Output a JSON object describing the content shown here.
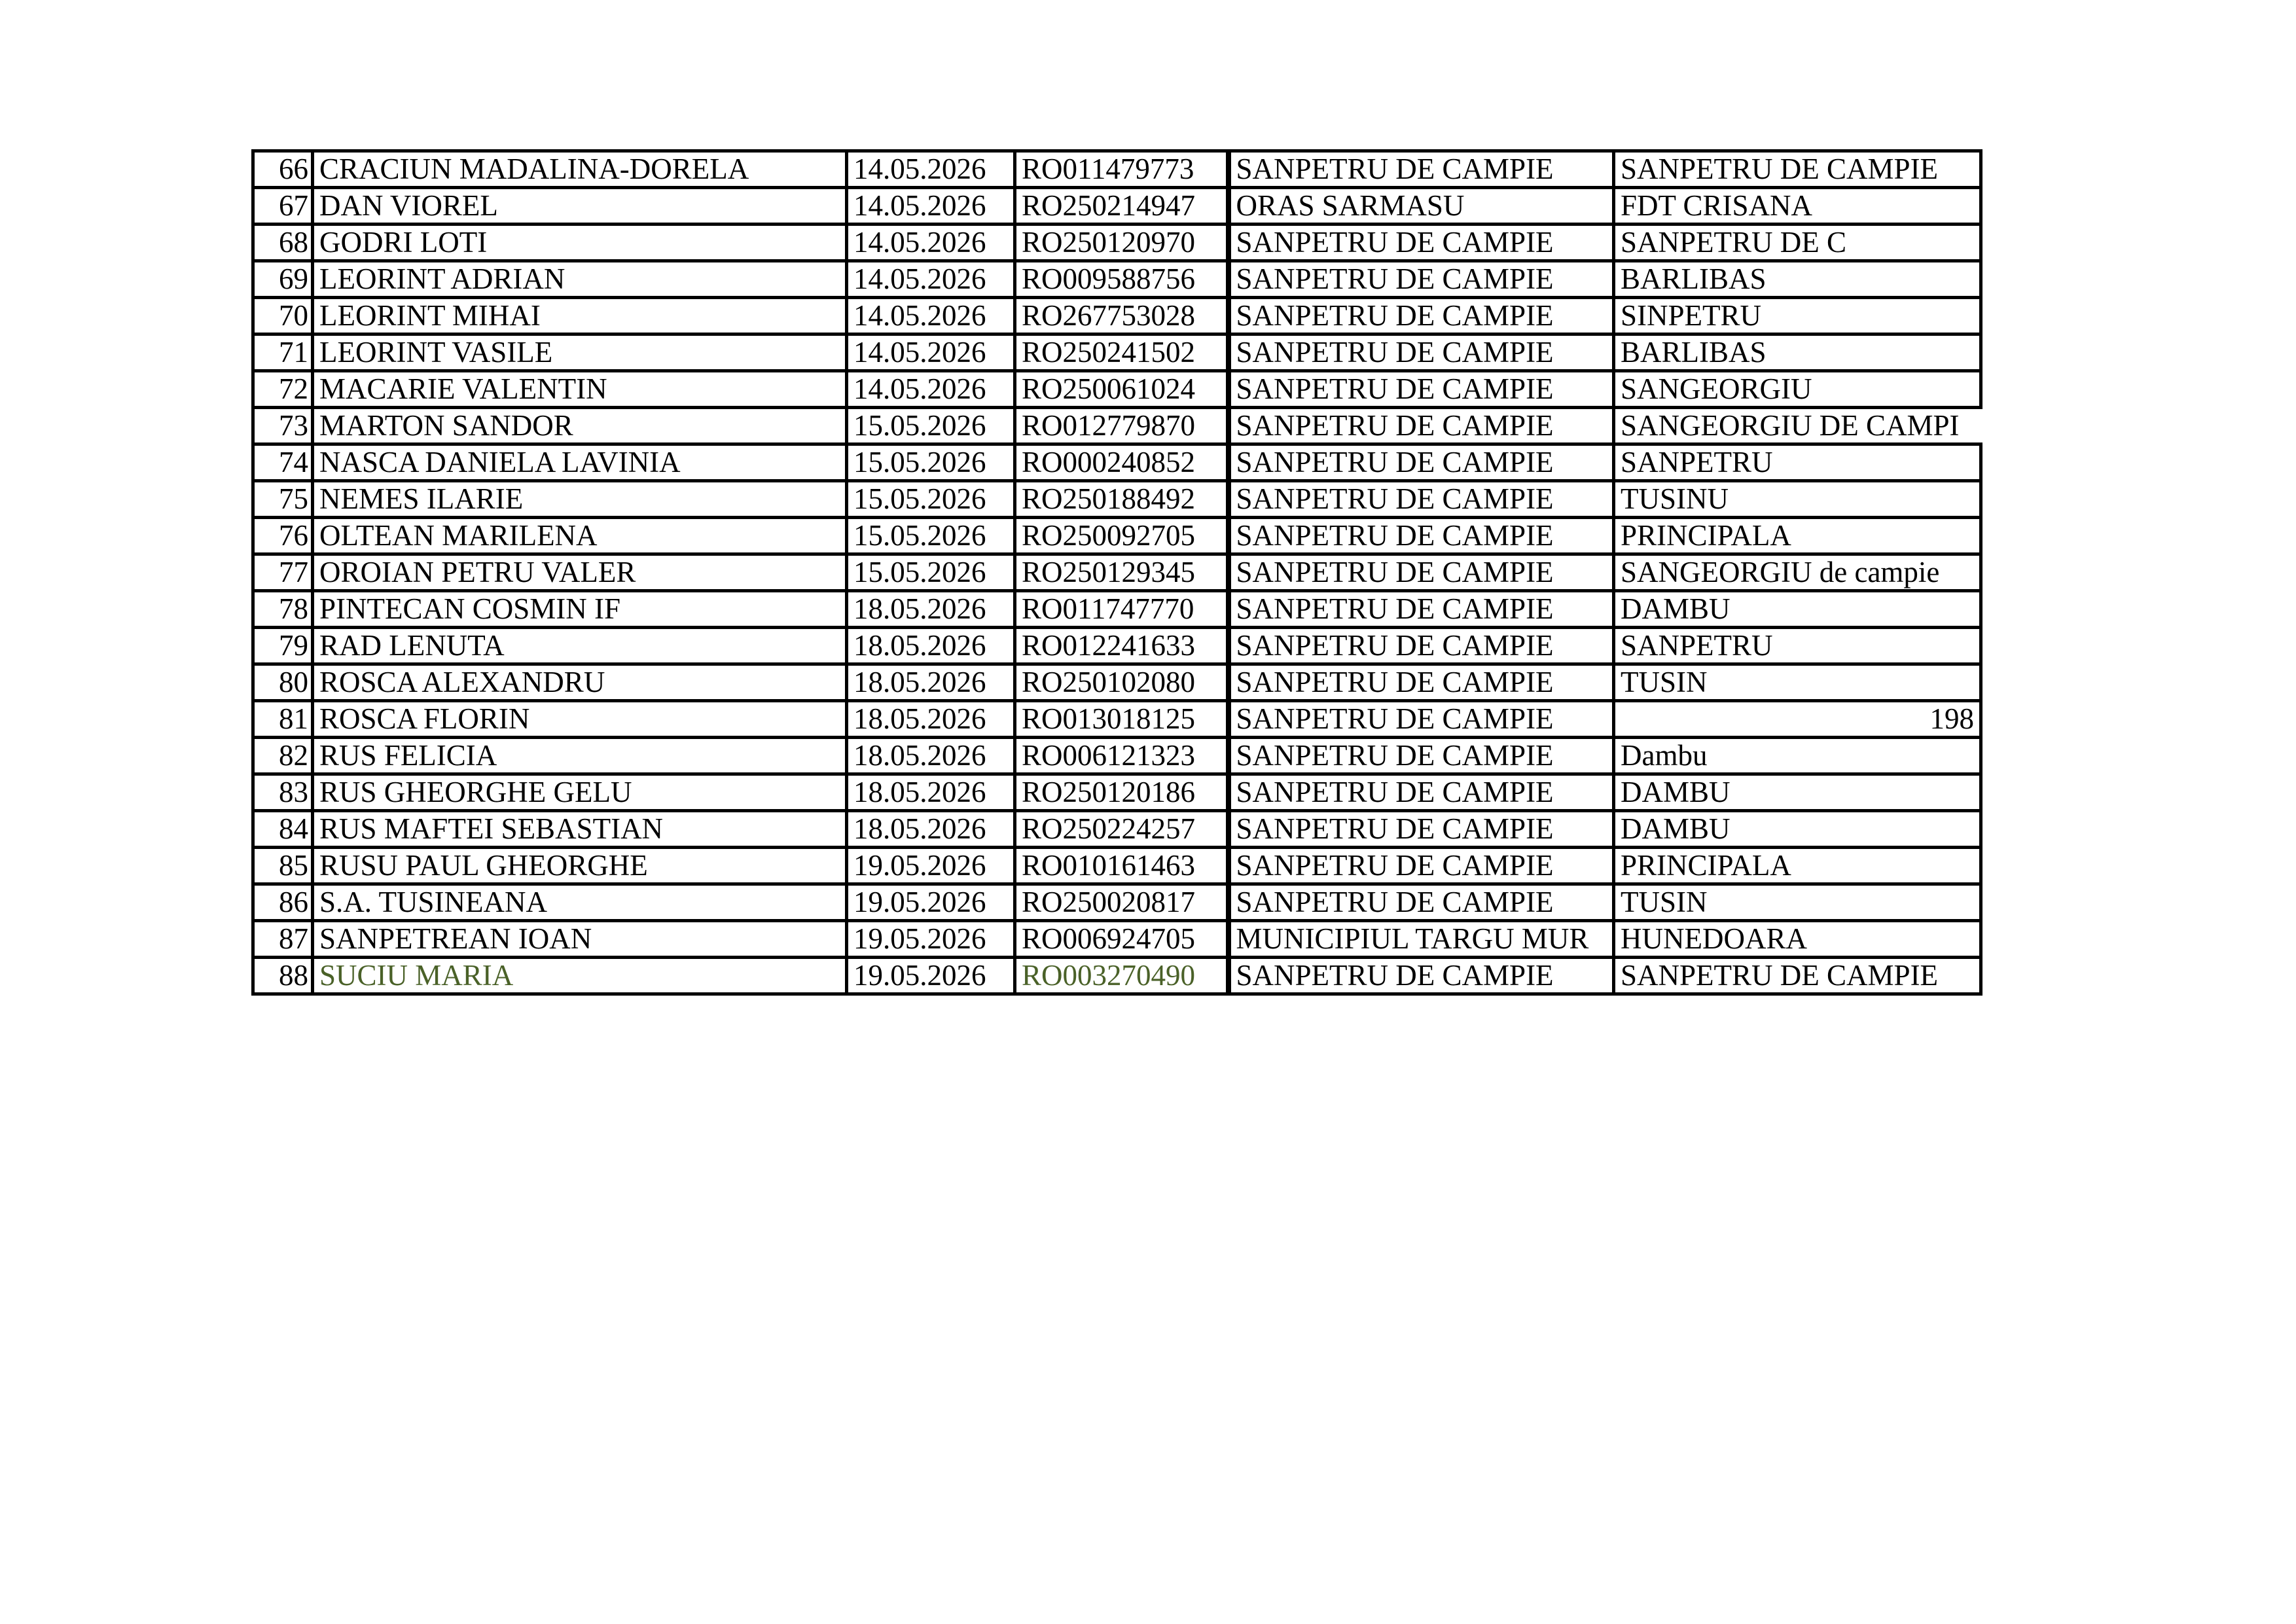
{
  "colors": {
    "highlight_text": "#4a6128"
  },
  "rows": [
    {
      "nr": "66",
      "name": "CRACIUN MADALINA-DORELA",
      "date": "14.05.2026",
      "code": "RO011479773",
      "locality": "SANPETRU DE CAMPIE",
      "street": "SANPETRU DE CAMPIE"
    },
    {
      "nr": "67",
      "name": "DAN VIOREL",
      "date": "14.05.2026",
      "code": "RO250214947",
      "locality": "ORAS SARMASU",
      "street": "FDT CRISANA"
    },
    {
      "nr": "68",
      "name": "GODRI LOTI",
      "date": "14.05.2026",
      "code": "RO250120970",
      "locality": "SANPETRU DE CAMPIE",
      "street": "SANPETRU DE C"
    },
    {
      "nr": "69",
      "name": "LEORINT ADRIAN",
      "date": "14.05.2026",
      "code": "RO009588756",
      "locality": "SANPETRU DE CAMPIE",
      "street": "BARLIBAS"
    },
    {
      "nr": "70",
      "name": "LEORINT MIHAI",
      "date": "14.05.2026",
      "code": "RO267753028",
      "locality": "SANPETRU DE CAMPIE",
      "street": "SINPETRU"
    },
    {
      "nr": "71",
      "name": "LEORINT VASILE",
      "date": "14.05.2026",
      "code": "RO250241502",
      "locality": "SANPETRU DE CAMPIE",
      "street": "BARLIBAS"
    },
    {
      "nr": "72",
      "name": "MACARIE VALENTIN",
      "date": "14.05.2026",
      "code": "RO250061024",
      "locality": "SANPETRU DE CAMPIE",
      "street": "SANGEORGIU"
    },
    {
      "nr": "73",
      "name": "MARTON SANDOR",
      "date": "15.05.2026",
      "code": "RO012779870",
      "locality": "SANPETRU DE CAMPIE",
      "street": "SANGEORGIU DE CAMPI"
    },
    {
      "nr": "74",
      "name": "NASCA DANIELA LAVINIA",
      "date": "15.05.2026",
      "code": "RO000240852",
      "locality": "SANPETRU DE CAMPIE",
      "street": "SANPETRU"
    },
    {
      "nr": "75",
      "name": "NEMES ILARIE",
      "date": "15.05.2026",
      "code": "RO250188492",
      "locality": "SANPETRU DE CAMPIE",
      "street": "TUSINU"
    },
    {
      "nr": "76",
      "name": "OLTEAN MARILENA",
      "date": "15.05.2026",
      "code": "RO250092705",
      "locality": "SANPETRU DE CAMPIE",
      "street": "PRINCIPALA"
    },
    {
      "nr": "77",
      "name": "OROIAN PETRU VALER",
      "date": "15.05.2026",
      "code": "RO250129345",
      "locality": "SANPETRU DE CAMPIE",
      "street": "SANGEORGIU de campie"
    },
    {
      "nr": "78",
      "name": "PINTECAN COSMIN IF",
      "date": "18.05.2026",
      "code": "RO011747770",
      "locality": "SANPETRU DE CAMPIE",
      "street": "DAMBU"
    },
    {
      "nr": "79",
      "name": "RAD LENUTA",
      "date": "18.05.2026",
      "code": "RO012241633",
      "locality": "SANPETRU DE CAMPIE",
      "street": "SANPETRU"
    },
    {
      "nr": "80",
      "name": "ROSCA ALEXANDRU",
      "date": "18.05.2026",
      "code": "RO250102080",
      "locality": "SANPETRU DE CAMPIE",
      "street": "TUSIN"
    },
    {
      "nr": "81",
      "name": "ROSCA FLORIN",
      "date": "18.05.2026",
      "code": "RO013018125",
      "locality": "SANPETRU DE CAMPIE",
      "street": "198"
    },
    {
      "nr": "82",
      "name": "RUS FELICIA",
      "date": "18.05.2026",
      "code": "RO006121323",
      "locality": "SANPETRU DE CAMPIE",
      "street": "Dambu"
    },
    {
      "nr": "83",
      "name": "RUS GHEORGHE GELU",
      "date": "18.05.2026",
      "code": "RO250120186",
      "locality": "SANPETRU DE CAMPIE",
      "street": "DAMBU"
    },
    {
      "nr": "84",
      "name": "RUS MAFTEI SEBASTIAN",
      "date": "18.05.2026",
      "code": "RO250224257",
      "locality": "SANPETRU DE CAMPIE",
      "street": "DAMBU"
    },
    {
      "nr": "85",
      "name": "RUSU PAUL GHEORGHE",
      "date": "19.05.2026",
      "code": "RO010161463",
      "locality": "SANPETRU DE CAMPIE",
      "street": "PRINCIPALA"
    },
    {
      "nr": "86",
      "name": "S.A. TUSINEANA",
      "date": "19.05.2026",
      "code": "RO250020817",
      "locality": "SANPETRU DE CAMPIE",
      "street": "TUSIN"
    },
    {
      "nr": "87",
      "name": "SANPETREAN IOAN",
      "date": "19.05.2026",
      "code": "RO006924705",
      "locality": "MUNICIPIUL TARGU MUR",
      "street": "HUNEDOARA"
    },
    {
      "nr": "88",
      "name": "SUCIU MARIA",
      "date": "19.05.2026",
      "code": "RO003270490",
      "locality": "SANPETRU DE CAMPIE",
      "street": "SANPETRU DE CAMPIE"
    }
  ]
}
